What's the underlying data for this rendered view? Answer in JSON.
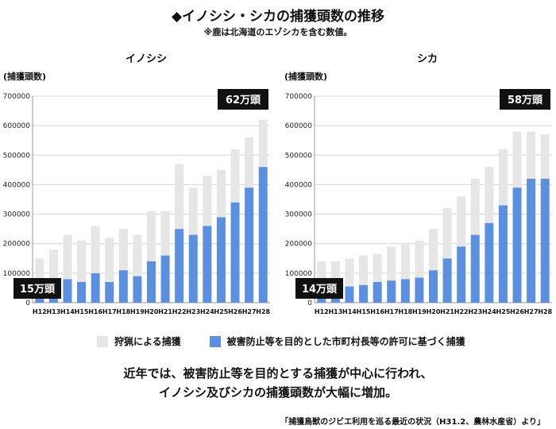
{
  "title": "◆イノシシ・シカの捕獲頭数の推移",
  "note": "※鹿は北海道のエゾシカを含む数値。",
  "colors": {
    "hunting": "#e6e6e6",
    "damage": "#5b8fe0",
    "callout_bg": "#111111",
    "callout_text": "#ffffff"
  },
  "legend": {
    "hunting": "狩猟による捕獲",
    "damage": "被害防止等を目的とした市町村長等の許可に基づく捕獲"
  },
  "summary": {
    "line1": "近年では、被害防止等を目的とする捕獲が中心に行われ、",
    "line2": "イノシシ及びシカの捕獲頭数が大幅に増加。"
  },
  "source": "「捕獲鳥獣のジビエ利用を巡る最近の状況（H31.2、農林水産省）より」",
  "chart_data": [
    {
      "type": "bar",
      "stacked": true,
      "title": "イノシシ",
      "ylabel": "(捕獲頭数)",
      "ylim": [
        0,
        700000
      ],
      "yticks": [
        0,
        100000,
        200000,
        300000,
        400000,
        500000,
        600000,
        700000
      ],
      "categories": [
        "H12",
        "H13",
        "H14",
        "H15",
        "H16",
        "H17",
        "H18",
        "H19",
        "H20",
        "H21",
        "H22",
        "H23",
        "H24",
        "H25",
        "H26",
        "H27",
        "H28"
      ],
      "series": [
        {
          "name": "被害防止等を目的とした市町村長等の許可に基づく捕獲",
          "key": "damage",
          "values": [
            65000,
            70000,
            80000,
            70000,
            100000,
            70000,
            110000,
            90000,
            140000,
            160000,
            250000,
            230000,
            260000,
            290000,
            340000,
            390000,
            460000
          ]
        },
        {
          "name": "狩猟による捕獲",
          "key": "hunting",
          "values": [
            85000,
            110000,
            150000,
            140000,
            160000,
            150000,
            140000,
            140000,
            170000,
            150000,
            220000,
            160000,
            170000,
            160000,
            180000,
            170000,
            160000
          ]
        }
      ],
      "callouts": {
        "start": "15万頭",
        "end": "62万頭"
      }
    },
    {
      "type": "bar",
      "stacked": true,
      "title": "シカ",
      "ylabel": "(捕獲頭数)",
      "ylim": [
        0,
        700000
      ],
      "yticks": [
        0,
        100000,
        200000,
        300000,
        400000,
        500000,
        600000,
        700000
      ],
      "categories": [
        "H12",
        "H13",
        "H14",
        "H15",
        "H16",
        "H17",
        "H18",
        "H19",
        "H20",
        "H21",
        "H22",
        "H23",
        "H24",
        "H25",
        "H26",
        "H27",
        "H28"
      ],
      "series": [
        {
          "name": "被害防止等を目的とした市町村長等の許可に基づく捕獲",
          "key": "damage",
          "values": [
            40000,
            45000,
            55000,
            60000,
            70000,
            75000,
            80000,
            85000,
            110000,
            150000,
            190000,
            230000,
            270000,
            330000,
            390000,
            420000,
            420000
          ]
        },
        {
          "name": "狩猟による捕獲",
          "key": "hunting",
          "values": [
            100000,
            95000,
            95000,
            100000,
            95000,
            115000,
            120000,
            125000,
            140000,
            170000,
            170000,
            190000,
            190000,
            190000,
            190000,
            160000,
            150000
          ]
        }
      ],
      "callouts": {
        "start": "14万頭",
        "end": "58万頭"
      }
    }
  ]
}
